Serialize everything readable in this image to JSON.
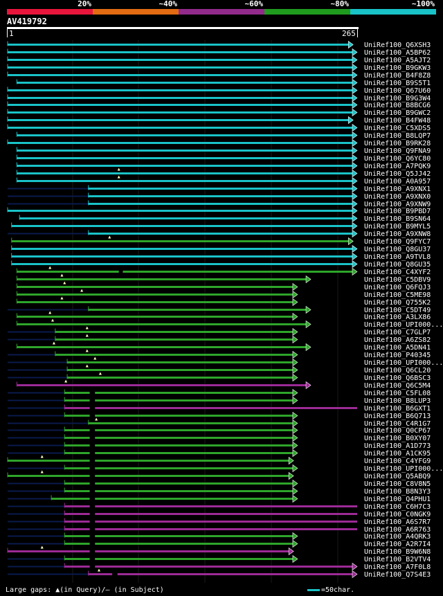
{
  "legend": {
    "labels": [
      "20%",
      "~40%",
      "~60%",
      "~80%",
      "~100%"
    ],
    "colors": [
      "#e8163c",
      "#e36b12",
      "#922b8c",
      "#1f9c1e",
      "#19c3c8"
    ]
  },
  "query": {
    "id": "AV419792",
    "start": "1",
    "end": "265"
  },
  "palette": {
    "cyan": "#19c3c8",
    "green": "#2ea52a",
    "magenta": "#9c2a96",
    "dim": "#0a1a4d"
  },
  "hits": [
    {
      "label": "UniRef100_Q6XSH3",
      "color": "cyan",
      "from": 1,
      "to": 262,
      "arrow": true
    },
    {
      "label": "UniRef100_A5BP62",
      "color": "cyan",
      "from": 1,
      "to": 265,
      "arrow": true
    },
    {
      "label": "UniRef100_A5AJT2",
      "color": "cyan",
      "from": 1,
      "to": 265,
      "arrow": true
    },
    {
      "label": "UniRef100_B9GKW3",
      "color": "cyan",
      "from": 1,
      "to": 265,
      "arrow": true
    },
    {
      "label": "UniRef100_B4F8Z8",
      "color": "cyan",
      "from": 1,
      "to": 265,
      "arrow": true
    },
    {
      "label": "UniRef100_B9S5T1",
      "color": "cyan",
      "from": 8,
      "to": 265,
      "arrow": true
    },
    {
      "label": "UniRef100_Q67U60",
      "color": "cyan",
      "from": 1,
      "to": 265,
      "arrow": true
    },
    {
      "label": "UniRef100_B9G3W4",
      "color": "cyan",
      "from": 1,
      "to": 265,
      "arrow": true
    },
    {
      "label": "UniRef100_B8BCG6",
      "color": "cyan",
      "from": 1,
      "to": 265,
      "arrow": true
    },
    {
      "label": "UniRef100_B9GWC2",
      "color": "cyan",
      "from": 1,
      "to": 265,
      "arrow": true
    },
    {
      "label": "UniRef100_B4FW48",
      "color": "cyan",
      "from": 1,
      "to": 262,
      "arrow": true
    },
    {
      "label": "UniRef100_C5XDS5",
      "color": "cyan",
      "from": 1,
      "to": 265,
      "arrow": true
    },
    {
      "label": "UniRef100_B8LQP7",
      "color": "cyan",
      "from": 8,
      "to": 265,
      "arrow": true
    },
    {
      "label": "UniRef100_B9RK28",
      "color": "cyan",
      "from": 1,
      "to": 265,
      "arrow": true
    },
    {
      "label": "UniRef100_Q9FNA9",
      "color": "cyan",
      "from": 8,
      "to": 265,
      "arrow": true
    },
    {
      "label": "UniRef100_Q6YC80",
      "color": "cyan",
      "from": 8,
      "to": 265,
      "arrow": true
    },
    {
      "label": "UniRef100_A7PQK9",
      "color": "cyan",
      "from": 8,
      "to": 265,
      "arrow": true
    },
    {
      "label": "UniRef100_Q5JJ42",
      "color": "cyan",
      "from": 8,
      "to": 265,
      "arrow": true,
      "gapAt": 85
    },
    {
      "label": "UniRef100_A0A957",
      "color": "cyan",
      "from": 8,
      "to": 265,
      "arrow": true,
      "gapAt": 85
    },
    {
      "label": "UniRef100_A9XNX1",
      "color": "cyan",
      "from": 62,
      "to": 265,
      "arrow": true,
      "dimFrom": 1
    },
    {
      "label": "UniRef100_A9XNX0",
      "color": "cyan",
      "from": 62,
      "to": 265,
      "arrow": true,
      "dimFrom": 1
    },
    {
      "label": "UniRef100_A9XNW9",
      "color": "cyan",
      "from": 62,
      "to": 265,
      "arrow": true,
      "dimFrom": 1
    },
    {
      "label": "UniRef100_B9PBD7",
      "color": "cyan",
      "from": 1,
      "to": 265,
      "arrow": true
    },
    {
      "label": "UniRef100_B9SN64",
      "color": "cyan",
      "from": 10,
      "to": 265,
      "arrow": true
    },
    {
      "label": "UniRef100_B9MYL5",
      "color": "cyan",
      "from": 4,
      "to": 265,
      "arrow": true
    },
    {
      "label": "UniRef100_A9XNW8",
      "color": "cyan",
      "from": 62,
      "to": 265,
      "arrow": true,
      "dimFrom": 1
    },
    {
      "label": "UniRef100_Q9FYC7",
      "color": "green",
      "from": 4,
      "to": 262,
      "arrow": true,
      "gapAt": 78
    },
    {
      "label": "UniRef100_Q8GU37",
      "color": "cyan",
      "from": 4,
      "to": 265,
      "arrow": true
    },
    {
      "label": "UniRef100_A9TVL8",
      "color": "cyan",
      "from": 4,
      "to": 265,
      "arrow": true
    },
    {
      "label": "UniRef100_Q8GU35",
      "color": "cyan",
      "from": 4,
      "to": 265,
      "arrow": true
    },
    {
      "label": "UniRef100_C4XYF2",
      "color": "green",
      "from": 8,
      "to": 265,
      "arrow": true,
      "gapAt": 33,
      "dark": [
        85,
        88
      ]
    },
    {
      "label": "UniRef100_C5DBV9",
      "color": "green",
      "from": 8,
      "to": 230,
      "arrow": true,
      "gapAt": 42
    },
    {
      "label": "UniRef100_Q6FQJ3",
      "color": "green",
      "from": 8,
      "to": 220,
      "arrow": true,
      "gapAt": 44
    },
    {
      "label": "UniRef100_C5ME98",
      "color": "green",
      "from": 8,
      "to": 220,
      "arrow": true,
      "gapAt": 57
    },
    {
      "label": "UniRef100_Q755K2",
      "color": "green",
      "from": 8,
      "to": 220,
      "arrow": true,
      "gapAt": 42
    },
    {
      "label": "UniRef100_C5DT49",
      "color": "green",
      "from": 62,
      "to": 230,
      "arrow": true,
      "dimFrom": 1
    },
    {
      "label": "UniRef100_A3LX86",
      "color": "green",
      "from": 8,
      "to": 220,
      "arrow": true,
      "gapAt": 33
    },
    {
      "label": "UniRef100_UPI000...",
      "color": "green",
      "from": 8,
      "to": 230,
      "arrow": true,
      "gapAt": 35
    },
    {
      "label": "UniRef100_C7GLP7",
      "color": "green",
      "from": 37,
      "to": 220,
      "arrow": true,
      "dimFrom": 1,
      "gapAt": 61
    },
    {
      "label": "UniRef100_A6ZS82",
      "color": "green",
      "from": 37,
      "to": 220,
      "arrow": true,
      "dimFrom": 1,
      "gapAt": 61
    },
    {
      "label": "UniRef100_A5DN41",
      "color": "green",
      "from": 8,
      "to": 230,
      "arrow": true,
      "gapAt": 36
    },
    {
      "label": "UniRef100_P40345",
      "color": "green",
      "from": 37,
      "to": 220,
      "arrow": true,
      "dimFrom": 1,
      "gapAt": 61
    },
    {
      "label": "UniRef100_UPI000...",
      "color": "green",
      "from": 46,
      "to": 220,
      "arrow": true,
      "dimFrom": 1,
      "gapAt": 67
    },
    {
      "label": "UniRef100_Q6CL20",
      "color": "green",
      "from": 46,
      "to": 220,
      "arrow": true,
      "dimFrom": 1,
      "gapAt": 61
    },
    {
      "label": "UniRef100_Q6BSC3",
      "color": "green",
      "from": 46,
      "to": 220,
      "arrow": true,
      "dimFrom": 1,
      "gapAt": 71
    },
    {
      "label": "UniRef100_Q6C5M4",
      "color": "magenta",
      "from": 8,
      "to": 230,
      "arrow": true,
      "gapAt": 45
    },
    {
      "label": "UniRef100_C5FL08",
      "color": "green",
      "from": 44,
      "to": 220,
      "arrow": true,
      "dimFrom": 1,
      "dark": [
        63,
        67
      ]
    },
    {
      "label": "UniRef100_B8LUP3",
      "color": "green",
      "from": 44,
      "to": 220,
      "arrow": true,
      "dimFrom": 1,
      "dark": [
        63,
        67
      ]
    },
    {
      "label": "UniRef100_B6GXT1",
      "color": "magenta",
      "from": 44,
      "to": 265,
      "arrow": false,
      "dimFrom": 1,
      "dark": [
        63,
        67
      ]
    },
    {
      "label": "UniRef100_B6Q713",
      "color": "green",
      "from": 44,
      "to": 220,
      "arrow": true,
      "dimFrom": 1,
      "dark": [
        63,
        67
      ]
    },
    {
      "label": "UniRef100_C4R1G7",
      "color": "green",
      "from": 62,
      "to": 220,
      "arrow": true,
      "dimFrom": 1,
      "gapAt": 68
    },
    {
      "label": "UniRef100_Q0CP67",
      "color": "green",
      "from": 44,
      "to": 220,
      "arrow": true,
      "dimFrom": 1,
      "dark": [
        63,
        67
      ]
    },
    {
      "label": "UniRef100_B0XY07",
      "color": "green",
      "from": 44,
      "to": 220,
      "arrow": true,
      "dimFrom": 1,
      "dark": [
        63,
        67
      ]
    },
    {
      "label": "UniRef100_A1D773",
      "color": "green",
      "from": 44,
      "to": 220,
      "arrow": true,
      "dimFrom": 1,
      "dark": [
        63,
        67
      ]
    },
    {
      "label": "UniRef100_A1CK95",
      "color": "green",
      "from": 44,
      "to": 220,
      "arrow": true,
      "dimFrom": 1,
      "dark": [
        63,
        67
      ]
    },
    {
      "label": "UniRef100_C4YFG9",
      "color": "green",
      "from": 1,
      "to": 217,
      "arrow": true,
      "gapAt": 27,
      "dark": [
        63,
        67
      ]
    },
    {
      "label": "UniRef100_UPI000...",
      "color": "green",
      "from": 44,
      "to": 220,
      "arrow": true,
      "dimFrom": 1,
      "dark": [
        63,
        67
      ]
    },
    {
      "label": "UniRef100_Q5ABQ9",
      "color": "green",
      "from": 1,
      "to": 217,
      "arrow": true,
      "gapAt": 27,
      "dark": [
        63,
        67
      ]
    },
    {
      "label": "UniRef100_C8V8N5",
      "color": "green",
      "from": 44,
      "to": 220,
      "arrow": true,
      "dimFrom": 1,
      "dark": [
        63,
        67
      ]
    },
    {
      "label": "UniRef100_B8N3Y3",
      "color": "green",
      "from": 44,
      "to": 220,
      "arrow": true,
      "dimFrom": 1,
      "dark": [
        63,
        67
      ]
    },
    {
      "label": "UniRef100_Q4PHU1",
      "color": "green",
      "from": 34,
      "to": 220,
      "arrow": true,
      "dimFrom": 1,
      "dark": [
        63,
        67
      ]
    },
    {
      "label": "UniRef100_C6H7C3",
      "color": "magenta",
      "from": 44,
      "to": 265,
      "arrow": false,
      "dimFrom": 1,
      "dark": [
        63,
        67
      ]
    },
    {
      "label": "UniRef100_C0NGK9",
      "color": "magenta",
      "from": 44,
      "to": 265,
      "arrow": false,
      "dimFrom": 1,
      "dark": [
        63,
        67
      ]
    },
    {
      "label": "UniRef100_A6S7R7",
      "color": "magenta",
      "from": 44,
      "to": 265,
      "arrow": false,
      "dimFrom": 1,
      "dark": [
        63,
        67
      ]
    },
    {
      "label": "UniRef100_A6R763",
      "color": "magenta",
      "from": 44,
      "to": 265,
      "arrow": false,
      "dimFrom": 1,
      "dark": [
        63,
        67
      ]
    },
    {
      "label": "UniRef100_A4QRK3",
      "color": "green",
      "from": 44,
      "to": 220,
      "arrow": true,
      "dimFrom": 1,
      "dark": [
        63,
        67
      ]
    },
    {
      "label": "UniRef100_A2R7I4",
      "color": "green",
      "from": 44,
      "to": 220,
      "arrow": true,
      "dimFrom": 1,
      "dark": [
        63,
        67
      ]
    },
    {
      "label": "UniRef100_B9W6N8",
      "color": "magenta",
      "from": 1,
      "to": 217,
      "arrow": true,
      "gapAt": 27,
      "dark": [
        63,
        67
      ]
    },
    {
      "label": "UniRef100_B2VTV4",
      "color": "green",
      "from": 44,
      "to": 220,
      "arrow": true,
      "dimFrom": 1,
      "dark": [
        63,
        67
      ]
    },
    {
      "label": "UniRef100_A7F0L8",
      "color": "magenta",
      "from": 44,
      "to": 265,
      "arrow": true,
      "dimFrom": 1,
      "dark": [
        63,
        67
      ]
    },
    {
      "label": "UniRef100_Q7S4E3",
      "color": "magenta",
      "from": 62,
      "to": 265,
      "arrow": true,
      "dimFrom": 1,
      "gapAt": 70,
      "dark": [
        80,
        84
      ]
    }
  ],
  "footer": {
    "gap_note": "Large gaps: ▲(in Query)/– (in Subject)",
    "scale_note": "=50char."
  }
}
